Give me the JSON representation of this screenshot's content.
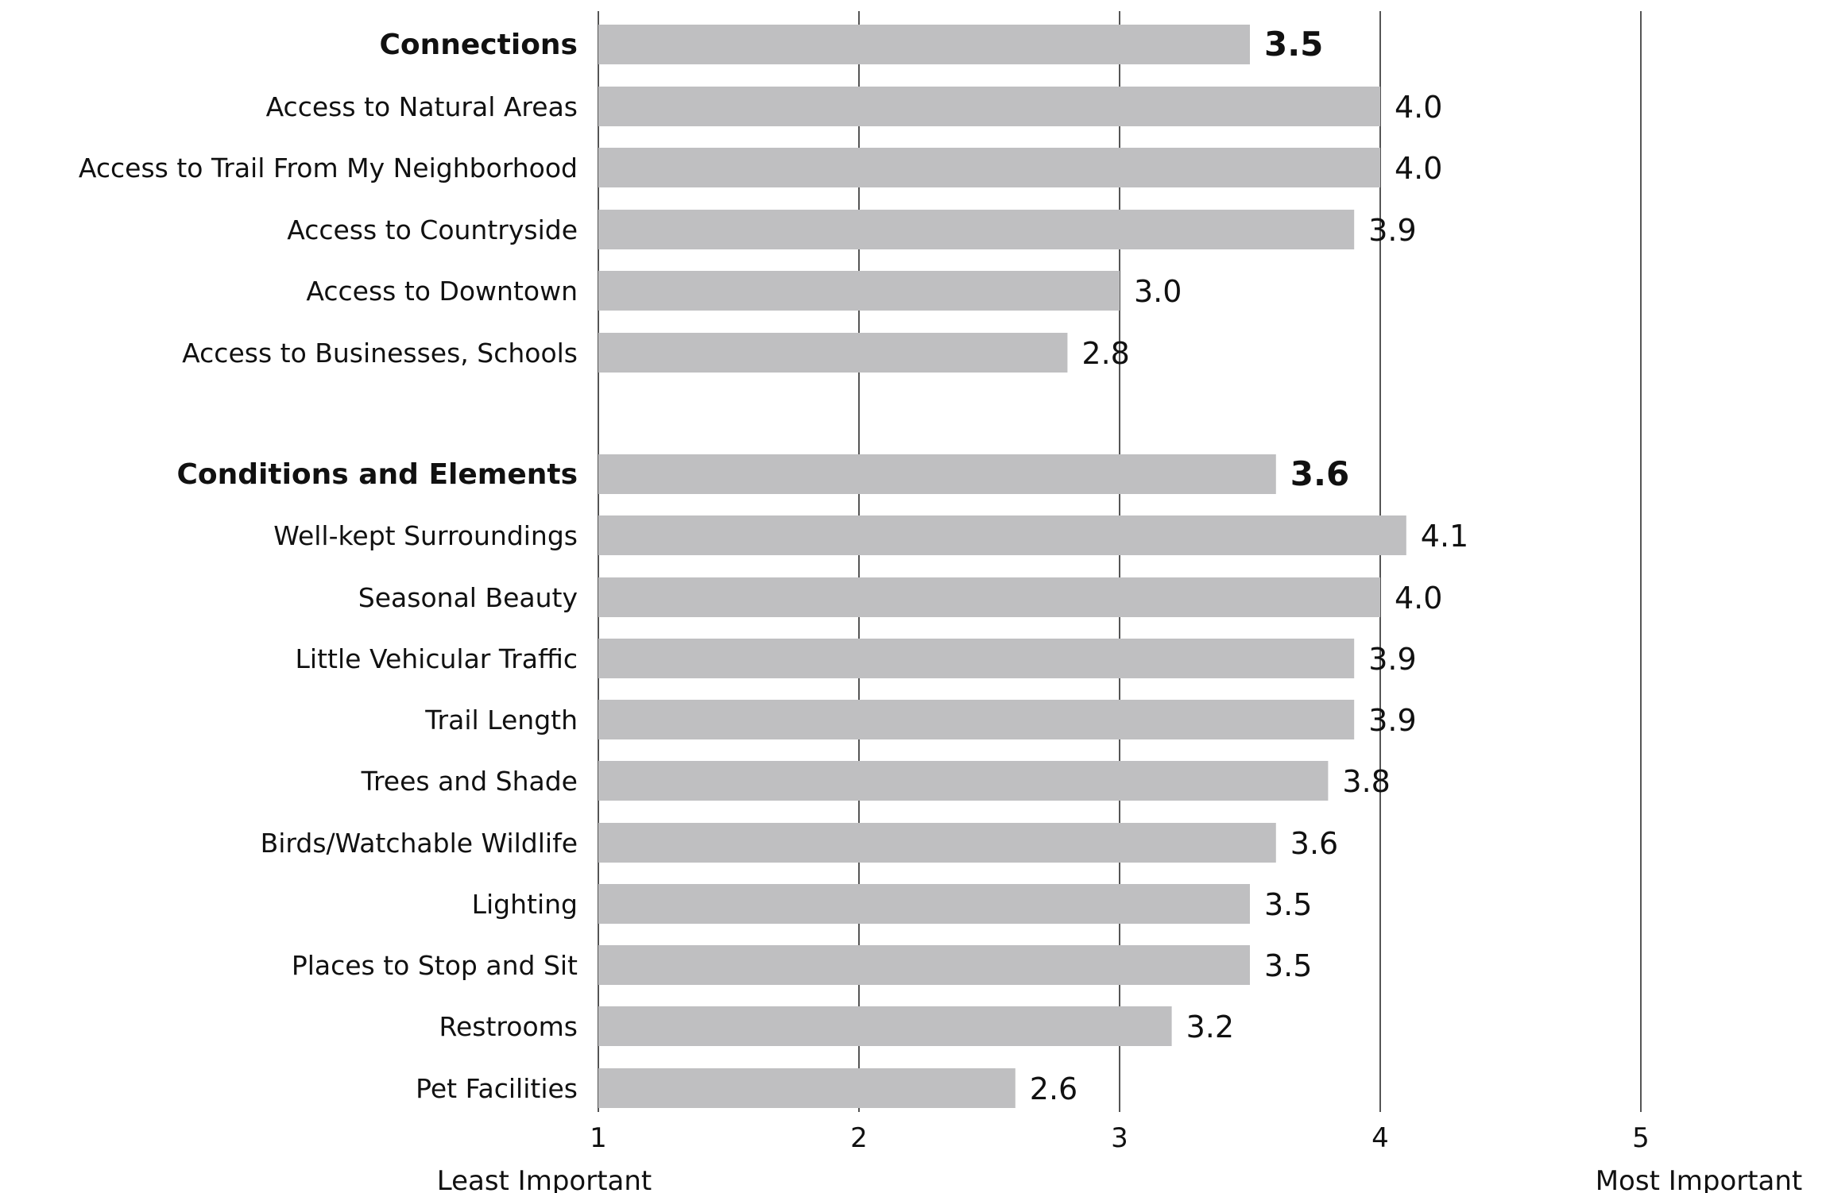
{
  "chart_data": {
    "type": "bar",
    "orientation": "horizontal",
    "title": "",
    "xlim": [
      1,
      5
    ],
    "x_ticks": [
      "1",
      "2",
      "3",
      "4",
      "5"
    ],
    "x_end_labels": {
      "left": "Least Important",
      "right": "Most Important"
    },
    "grid": "vertical",
    "bar_color": "#bfbfc1",
    "categories": [
      "Connections",
      "Access to Natural Areas",
      "Access to Trail From My Neighborhood",
      "Access to Countryside",
      "Access to Downtown",
      "Access to Businesses, Schools",
      "Conditions and Elements",
      "Well-kept Surroundings",
      "Seasonal Beauty",
      "Little Vehicular Traffic",
      "Trail Length",
      "Trees and Shade",
      "Birds/Watchable Wildlife",
      "Lighting",
      "Places to Stop and Sit",
      "Restrooms",
      "Pet Facilities"
    ],
    "values": [
      3.5,
      4.0,
      4.0,
      3.9,
      3.0,
      2.8,
      3.6,
      4.1,
      4.0,
      3.9,
      3.9,
      3.8,
      3.6,
      3.5,
      3.5,
      3.2,
      2.6
    ],
    "value_labels": [
      "3.5",
      "4.0",
      "4.0",
      "3.9",
      "3.0",
      "2.8",
      "3.6",
      "4.1",
      "4.0",
      "3.9",
      "3.9",
      "3.8",
      "3.6",
      "3.5",
      "3.5",
      "3.2",
      "2.6"
    ],
    "group_headers": [
      "Connections",
      "Conditions and Elements"
    ]
  }
}
